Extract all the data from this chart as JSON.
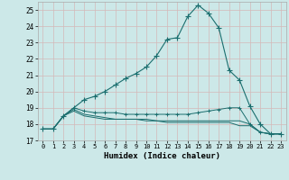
{
  "xlabel": "Humidex (Indice chaleur)",
  "bg_color": "#cce8e8",
  "grid_color": "#d4b8b8",
  "line_color": "#1a6e6e",
  "xlim": [
    -0.5,
    23.5
  ],
  "ylim": [
    17,
    25.5
  ],
  "yticks": [
    17,
    18,
    19,
    20,
    21,
    22,
    23,
    24,
    25
  ],
  "xticks": [
    0,
    1,
    2,
    3,
    4,
    5,
    6,
    7,
    8,
    9,
    10,
    11,
    12,
    13,
    14,
    15,
    16,
    17,
    18,
    19,
    20,
    21,
    22,
    23
  ],
  "line1_x": [
    0,
    1,
    2,
    3,
    4,
    5,
    6,
    7,
    8,
    9,
    10,
    11,
    12,
    13,
    14,
    15,
    16,
    17,
    18,
    19,
    20,
    21,
    22,
    23
  ],
  "line1_y": [
    17.7,
    17.7,
    18.5,
    19.0,
    19.5,
    19.7,
    20.0,
    20.4,
    20.8,
    21.1,
    21.5,
    22.2,
    23.2,
    23.3,
    24.6,
    25.3,
    24.8,
    23.9,
    21.3,
    20.7,
    19.1,
    18.0,
    17.4,
    17.4
  ],
  "line2_x": [
    0,
    1,
    2,
    3,
    4,
    5,
    6,
    7,
    8,
    9,
    10,
    11,
    12,
    13,
    14,
    15,
    16,
    17,
    18,
    19,
    20,
    21,
    22,
    23
  ],
  "line2_y": [
    17.7,
    17.7,
    18.5,
    19.0,
    18.8,
    18.7,
    18.7,
    18.7,
    18.6,
    18.6,
    18.6,
    18.6,
    18.6,
    18.6,
    18.6,
    18.7,
    18.8,
    18.9,
    19.0,
    19.0,
    18.0,
    17.5,
    17.4,
    17.4
  ],
  "line3_x": [
    0,
    1,
    2,
    3,
    4,
    5,
    6,
    7,
    8,
    9,
    10,
    11,
    12,
    13,
    14,
    15,
    16,
    17,
    18,
    19,
    20,
    21,
    22,
    23
  ],
  "line3_y": [
    17.7,
    17.7,
    18.5,
    18.8,
    18.5,
    18.4,
    18.3,
    18.3,
    18.3,
    18.3,
    18.3,
    18.2,
    18.2,
    18.2,
    18.2,
    18.2,
    18.2,
    18.2,
    18.2,
    18.2,
    18.0,
    17.5,
    17.4,
    17.4
  ],
  "line4_x": [
    0,
    1,
    2,
    3,
    4,
    5,
    6,
    7,
    8,
    9,
    10,
    11,
    12,
    13,
    14,
    15,
    16,
    17,
    18,
    19,
    20,
    21,
    22,
    23
  ],
  "line4_y": [
    17.7,
    17.7,
    18.5,
    18.9,
    18.6,
    18.5,
    18.4,
    18.3,
    18.3,
    18.3,
    18.2,
    18.2,
    18.1,
    18.1,
    18.1,
    18.1,
    18.1,
    18.1,
    18.1,
    17.9,
    17.9,
    17.5,
    17.4,
    17.4
  ]
}
